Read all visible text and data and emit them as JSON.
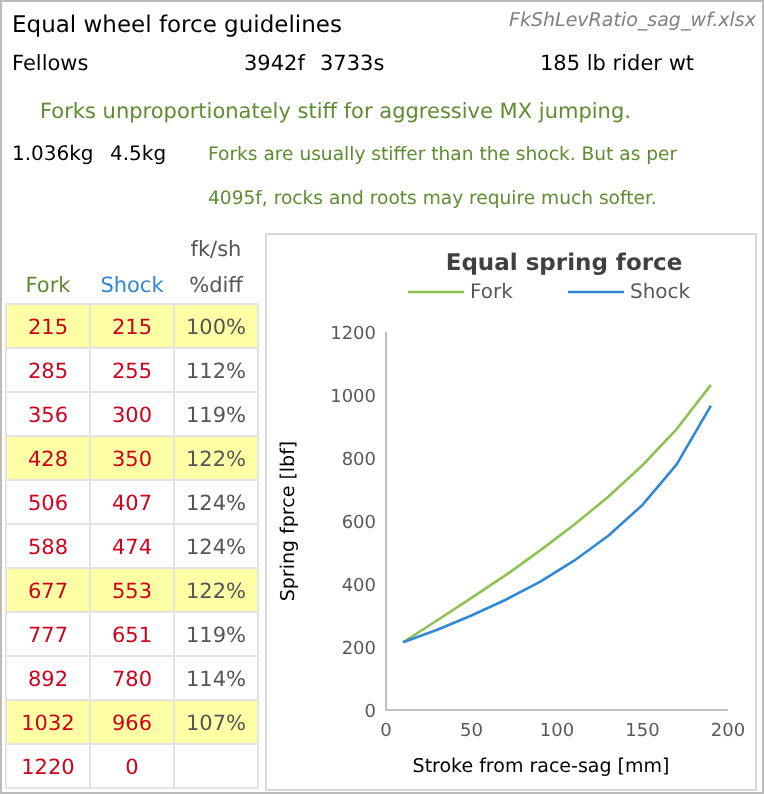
{
  "chart_data": [
    {
      "type": "other",
      "title": "Equal wheel force guidelines",
      "annotations": [
        "FkShLevRatio_sag_wf.xlsx",
        "Fellows",
        "3942f",
        "3733s",
        "185 lb rider wt",
        "Forks unproportionately stiff for aggressive MX jumping.",
        "1.036kg",
        "4.5kg",
        "Forks are usually stiffer than the shock.  But as per 4095f, rocks and roots may require much softer.",
        "Fork",
        "Shock",
        "fk/sh",
        "%diff",
        "215",
        "215",
        "100%",
        "285",
        "255",
        "112%",
        "356",
        "300",
        "119%",
        "428",
        "350",
        "122%",
        "506",
        "407",
        "124%",
        "588",
        "474",
        "124%",
        "677",
        "553",
        "122%",
        "777",
        "651",
        "119%",
        "892",
        "780",
        "114%",
        "1032",
        "966",
        "107%",
        "1220",
        "0"
      ],
      "colors": [
        "#ffffa6",
        "#ffffff",
        "#ffffff",
        "#ffffa6",
        "#ffffff",
        "#ffffff",
        "#ffffa6",
        "#ffffff",
        "#ffffff",
        "#ffffa6",
        "#ffffff"
      ]
    },
    {
      "type": "line",
      "title": "Equal spring force",
      "xlabel": "Stroke from race-sag [mm]",
      "ylabel": "Spring fprce [lbf]",
      "x": [
        10,
        30,
        50,
        70,
        90,
        110,
        130,
        150,
        170,
        190
      ],
      "series": [
        {
          "name": "Fork",
          "color": "#8dc150",
          "values": [
            215,
            285,
            356,
            428,
            506,
            588,
            677,
            777,
            892,
            1032
          ]
        },
        {
          "name": "Shock",
          "color": "#2f87d6",
          "values": [
            215,
            255,
            300,
            350,
            407,
            474,
            553,
            651,
            780,
            966
          ]
        }
      ],
      "xlim": [
        0,
        200
      ],
      "xticks": [
        0,
        50,
        100,
        150,
        200
      ],
      "ylim": [
        0,
        1200
      ],
      "yticks": [
        0,
        200,
        400,
        600,
        800,
        1000,
        1200
      ],
      "grid": false,
      "legend": "top",
      "marker": "none",
      "line_style": "solid"
    }
  ]
}
